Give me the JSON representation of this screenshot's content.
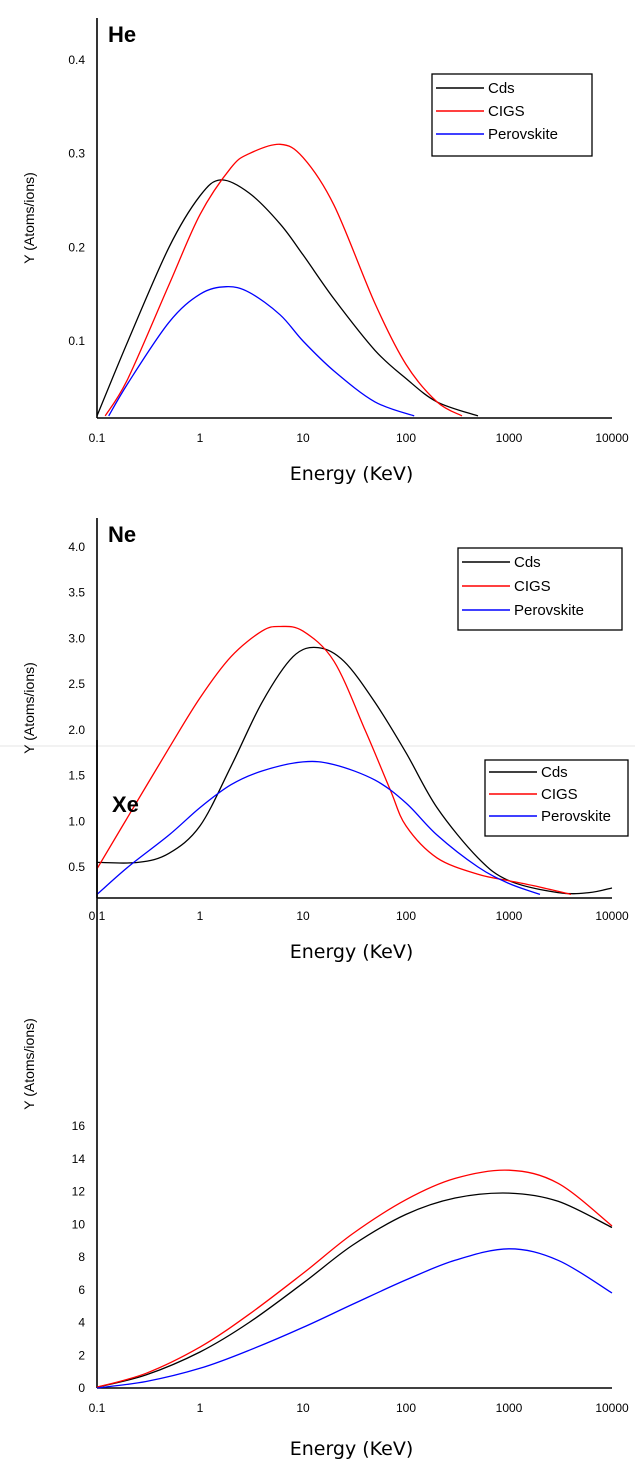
{
  "chart_data": [
    {
      "type": "line",
      "title": "He",
      "xlabel": "Energy (KeV)",
      "ylabel": "Y (Atoms/ions)",
      "xscale": "log",
      "xlim": [
        0.1,
        10000
      ],
      "ylim": [
        0.02,
        0.44
      ],
      "xticks": [
        0.1,
        1,
        10,
        100,
        1000,
        10000
      ],
      "xtick_labels": [
        "0.1",
        "1",
        "10",
        "100",
        "1000",
        "10000"
      ],
      "yticks": [
        0.1,
        0.2,
        0.3,
        0.4
      ],
      "ytick_labels": [
        "0.1",
        "0.2",
        "0.3",
        "0.4"
      ],
      "legend": "top-right",
      "grid": false,
      "series": [
        {
          "name": "Cds",
          "color": "#000000",
          "x": [
            0.1,
            0.2,
            0.5,
            1,
            1.6,
            3,
            6,
            10,
            20,
            50,
            100,
            200,
            500
          ],
          "y": [
            0.02,
            0.1,
            0.2,
            0.255,
            0.272,
            0.258,
            0.225,
            0.192,
            0.145,
            0.09,
            0.06,
            0.035,
            0.02
          ]
        },
        {
          "name": "CIGS",
          "color": "#ff0000",
          "x": [
            0.12,
            0.2,
            0.5,
            1,
            2,
            3,
            6,
            10,
            20,
            50,
            100,
            200,
            350
          ],
          "y": [
            0.02,
            0.06,
            0.16,
            0.235,
            0.285,
            0.3,
            0.31,
            0.296,
            0.245,
            0.14,
            0.075,
            0.035,
            0.02
          ]
        },
        {
          "name": "Perovskite",
          "color": "#0000ff",
          "x": [
            0.13,
            0.2,
            0.5,
            1,
            1.8,
            3,
            6,
            10,
            20,
            50,
            120
          ],
          "y": [
            0.02,
            0.055,
            0.12,
            0.15,
            0.158,
            0.152,
            0.128,
            0.1,
            0.068,
            0.035,
            0.02
          ]
        }
      ]
    },
    {
      "type": "line",
      "title": "Ne",
      "xlabel": "Energy (KeV)",
      "ylabel": "Y (Atoms/ions)",
      "xscale": "log",
      "xlim": [
        0.1,
        10000
      ],
      "ylim": [
        0.2,
        4.2
      ],
      "xticks": [
        0.1,
        1,
        10,
        100,
        1000,
        10000
      ],
      "xtick_labels": [
        "0.1",
        "1",
        "10",
        "100",
        "1000",
        "10000"
      ],
      "yticks": [
        0.5,
        1.0,
        1.5,
        2.0,
        2.5,
        3.0,
        3.5,
        4.0
      ],
      "ytick_labels": [
        "0.5",
        "1.0",
        "1.5",
        "2.0",
        "2.5",
        "3.0",
        "3.5",
        "4.0"
      ],
      "legend": "top-right",
      "grid": false,
      "series": [
        {
          "name": "Cds",
          "color": "#000000",
          "x": [
            0.1,
            0.25,
            0.5,
            1,
            2,
            4,
            8,
            14,
            25,
            50,
            100,
            200,
            500,
            1000,
            3000,
            6000,
            10000
          ],
          "y": [
            0.55,
            0.55,
            0.65,
            0.95,
            1.6,
            2.3,
            2.8,
            2.9,
            2.75,
            2.3,
            1.75,
            1.15,
            0.6,
            0.35,
            0.22,
            0.22,
            0.27
          ]
        },
        {
          "name": "CIGS",
          "color": "#ff0000",
          "x": [
            0.1,
            0.2,
            0.5,
            1,
            2,
            4,
            6,
            10,
            20,
            40,
            70,
            100,
            200,
            500,
            1000,
            2000,
            4000
          ],
          "y": [
            0.48,
            1.05,
            1.8,
            2.35,
            2.8,
            3.08,
            3.13,
            3.08,
            2.75,
            2.0,
            1.35,
            0.95,
            0.6,
            0.42,
            0.35,
            0.28,
            0.2
          ]
        },
        {
          "name": "Perovskite",
          "color": "#0000ff",
          "x": [
            0.1,
            0.2,
            0.5,
            1,
            2,
            4,
            10,
            20,
            50,
            100,
            200,
            500,
            1000,
            2000
          ],
          "y": [
            0.2,
            0.5,
            0.85,
            1.15,
            1.4,
            1.55,
            1.65,
            1.62,
            1.45,
            1.2,
            0.85,
            0.5,
            0.32,
            0.2
          ]
        }
      ]
    },
    {
      "type": "line",
      "title": "Xe",
      "xlabel": "Energy (KeV)",
      "ylabel": "Y (Atoms/ions)",
      "xscale": "log",
      "xlim": [
        0.1,
        10000
      ],
      "ylim": [
        0,
        16
      ],
      "xticks": [
        0.1,
        1,
        10,
        100,
        1000,
        10000
      ],
      "xtick_labels": [
        "0.1",
        "1",
        "10",
        "100",
        "1000",
        "10000"
      ],
      "yticks": [
        0,
        2,
        4,
        6,
        8,
        10,
        12,
        14,
        16
      ],
      "ytick_labels": [
        "0",
        "2",
        "4",
        "6",
        "8",
        "10",
        "12",
        "14",
        "16"
      ],
      "legend": "top-right",
      "grid": false,
      "series": [
        {
          "name": "Cds",
          "color": "#000000",
          "x": [
            0.1,
            0.3,
            1,
            3,
            10,
            30,
            100,
            300,
            1000,
            3000,
            10000
          ],
          "y": [
            0.05,
            0.8,
            2.2,
            4.0,
            6.4,
            8.7,
            10.6,
            11.6,
            11.9,
            11.4,
            9.8
          ]
        },
        {
          "name": "CIGS",
          "color": "#ff0000",
          "x": [
            0.1,
            0.3,
            1,
            3,
            10,
            30,
            100,
            300,
            1000,
            3000,
            10000
          ],
          "y": [
            0.05,
            0.9,
            2.5,
            4.5,
            7.0,
            9.4,
            11.5,
            12.8,
            13.3,
            12.5,
            9.9
          ]
        },
        {
          "name": "Perovskite",
          "color": "#0000ff",
          "x": [
            0.1,
            0.3,
            1,
            3,
            10,
            30,
            100,
            300,
            1000,
            3000,
            10000
          ],
          "y": [
            0.0,
            0.4,
            1.2,
            2.3,
            3.7,
            5.1,
            6.6,
            7.8,
            8.5,
            7.8,
            5.8
          ]
        }
      ]
    }
  ]
}
